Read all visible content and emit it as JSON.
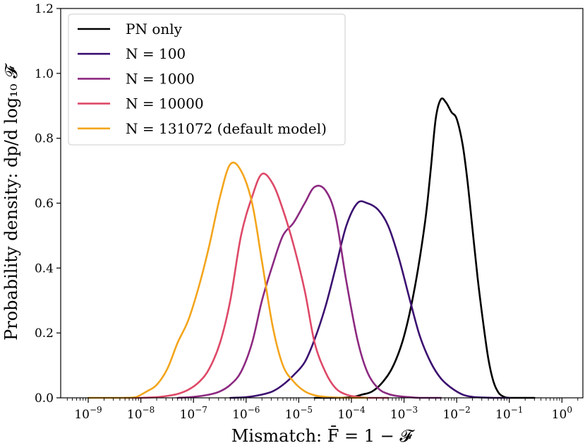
{
  "chart_data": {
    "type": "line",
    "xlabel": "Mismatch: F̄ = 1 − 𝓕",
    "ylabel": "Probability density: dp/d log₁₀ 𝓕",
    "x_scale": "log",
    "xlim": [
      3e-10,
      2.5
    ],
    "ylim": [
      0,
      1.2
    ],
    "x_ticks": [
      {
        "value": 1e-09,
        "label": "10",
        "exp": "−9"
      },
      {
        "value": 1e-08,
        "label": "10",
        "exp": "−8"
      },
      {
        "value": 1e-07,
        "label": "10",
        "exp": "−7"
      },
      {
        "value": 1e-06,
        "label": "10",
        "exp": "−6"
      },
      {
        "value": 1e-05,
        "label": "10",
        "exp": "−5"
      },
      {
        "value": 0.0001,
        "label": "10",
        "exp": "−4"
      },
      {
        "value": 0.001,
        "label": "10",
        "exp": "−3"
      },
      {
        "value": 0.01,
        "label": "10",
        "exp": "−2"
      },
      {
        "value": 0.1,
        "label": "10",
        "exp": "−1"
      },
      {
        "value": 1,
        "label": "10",
        "exp": "0"
      }
    ],
    "y_ticks": [
      {
        "value": 0.0,
        "label": "0.0"
      },
      {
        "value": 0.2,
        "label": "0.2"
      },
      {
        "value": 0.4,
        "label": "0.4"
      },
      {
        "value": 0.6,
        "label": "0.6"
      },
      {
        "value": 0.8,
        "label": "0.8"
      },
      {
        "value": 1.0,
        "label": "1.0"
      },
      {
        "value": 1.2,
        "label": "1.2"
      }
    ],
    "grid": false,
    "legend_position": "top-left",
    "series": [
      {
        "name": "PN only",
        "color": "#000000",
        "x": [
          2e-05,
          5e-05,
          0.0001,
          0.00016,
          0.00025,
          0.0004,
          0.00063,
          0.001,
          0.0016,
          0.0025,
          0.0032,
          0.004,
          0.005,
          0.0063,
          0.008,
          0.01,
          0.013,
          0.016,
          0.02,
          0.025,
          0.032,
          0.04,
          0.05,
          0.063,
          0.08,
          0.1,
          0.13,
          0.2,
          0.3
        ],
        "y": [
          0.0,
          0.0,
          0.002,
          0.01,
          0.02,
          0.05,
          0.1,
          0.19,
          0.34,
          0.54,
          0.7,
          0.86,
          0.92,
          0.91,
          0.88,
          0.86,
          0.78,
          0.67,
          0.52,
          0.37,
          0.23,
          0.12,
          0.05,
          0.015,
          0.003,
          0.0,
          0.0,
          0.0,
          0.0
        ]
      },
      {
        "name": "N = 100",
        "color": "#3b0f70",
        "x": [
          5e-07,
          1e-06,
          2e-06,
          3.2e-06,
          5e-06,
          8e-06,
          1.3e-05,
          2e-05,
          3.2e-05,
          5e-05,
          8e-05,
          0.00013,
          0.0002,
          0.00032,
          0.0005,
          0.0008,
          0.0013,
          0.002,
          0.0032,
          0.005,
          0.008,
          0.013,
          0.02,
          0.032,
          0.05,
          0.1
        ],
        "y": [
          0.0,
          0.002,
          0.01,
          0.02,
          0.04,
          0.07,
          0.11,
          0.18,
          0.28,
          0.4,
          0.53,
          0.6,
          0.6,
          0.58,
          0.53,
          0.43,
          0.3,
          0.19,
          0.11,
          0.06,
          0.03,
          0.01,
          0.003,
          0.001,
          0.0,
          0.0
        ]
      },
      {
        "name": "N = 1000",
        "color": "#8c2981",
        "x": [
          5e-08,
          1e-07,
          2e-07,
          3.2e-07,
          5e-07,
          8e-07,
          1.3e-06,
          2e-06,
          3.2e-06,
          5e-06,
          8e-06,
          1.3e-05,
          2e-05,
          3.2e-05,
          5e-05,
          8e-05,
          0.00013,
          0.0002,
          0.00032,
          0.0005,
          0.0008,
          0.0013,
          0.002,
          0.005
        ],
        "y": [
          0.0,
          0.003,
          0.01,
          0.02,
          0.04,
          0.08,
          0.17,
          0.3,
          0.41,
          0.5,
          0.54,
          0.6,
          0.65,
          0.64,
          0.56,
          0.36,
          0.18,
          0.08,
          0.03,
          0.012,
          0.005,
          0.002,
          0.0,
          0.0
        ]
      },
      {
        "name": "N = 10000",
        "color": "#de4968",
        "x": [
          5e-09,
          1e-08,
          2e-08,
          3.2e-08,
          5e-08,
          8e-08,
          1.3e-07,
          2e-07,
          3.2e-07,
          5e-07,
          8e-07,
          1.3e-06,
          2e-06,
          3.2e-06,
          5e-06,
          8e-06,
          1.3e-05,
          2e-05,
          3.2e-05,
          5e-05,
          8e-05,
          0.00013,
          0.0002,
          0.0005
        ],
        "y": [
          0.0,
          0.0,
          0.002,
          0.006,
          0.012,
          0.025,
          0.05,
          0.09,
          0.17,
          0.3,
          0.5,
          0.62,
          0.69,
          0.66,
          0.58,
          0.47,
          0.33,
          0.17,
          0.08,
          0.03,
          0.01,
          0.003,
          0.0,
          0.0
        ]
      },
      {
        "name": "N = 131072 (default model)",
        "color": "#f3a51c",
        "x": [
          1e-09,
          2e-09,
          5e-09,
          8e-09,
          1.3e-08,
          2e-08,
          3.2e-08,
          5e-08,
          8e-08,
          1.3e-07,
          2e-07,
          3.2e-07,
          5e-07,
          8e-07,
          1.3e-06,
          2e-06,
          3.2e-06,
          5e-06,
          8e-06,
          1.3e-05,
          2e-05,
          3.2e-05,
          5e-05,
          8e-05,
          0.0002
        ],
        "y": [
          0.0,
          0.0,
          0.0,
          0.002,
          0.02,
          0.04,
          0.09,
          0.17,
          0.24,
          0.35,
          0.47,
          0.62,
          0.72,
          0.7,
          0.6,
          0.42,
          0.22,
          0.1,
          0.05,
          0.02,
          0.008,
          0.003,
          0.001,
          0.0,
          0.0
        ]
      }
    ]
  }
}
